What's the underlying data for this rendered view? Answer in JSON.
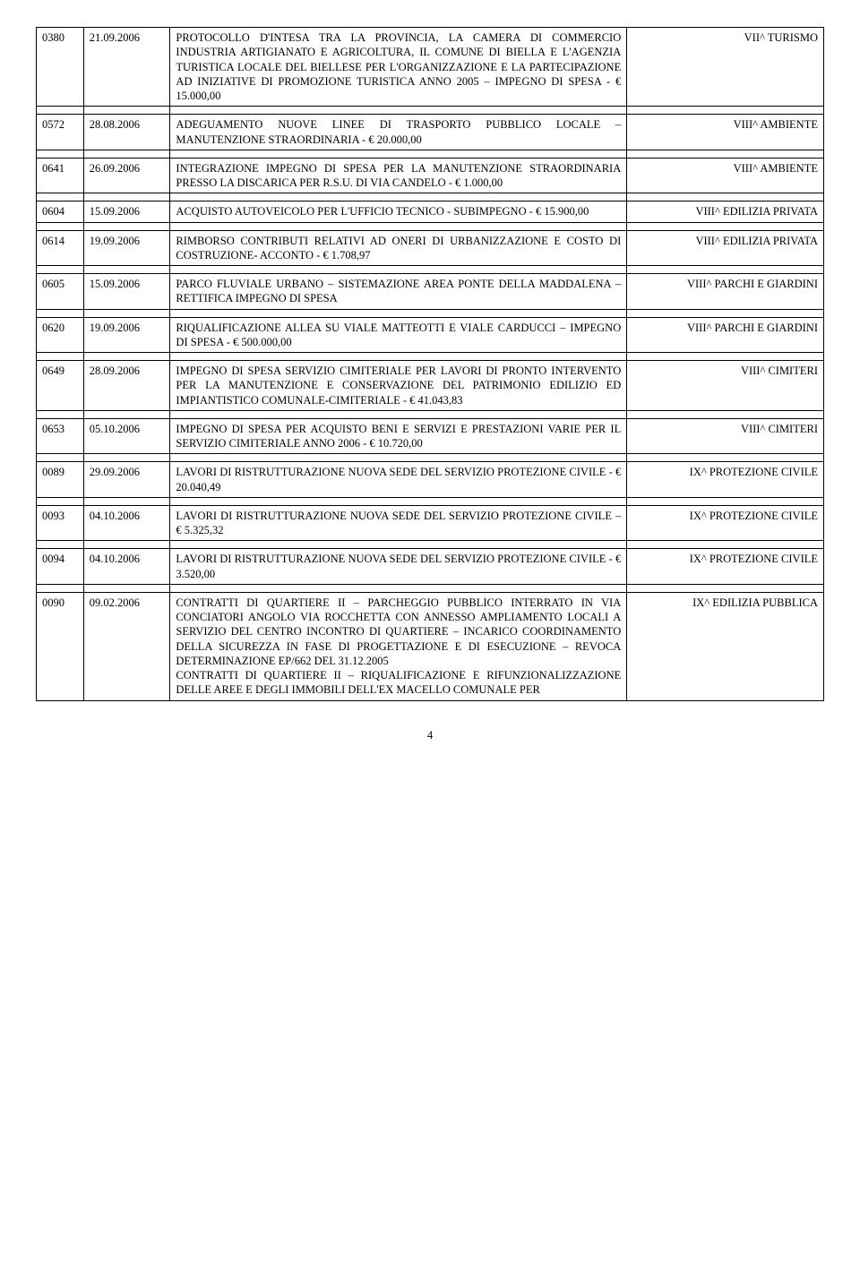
{
  "rows": [
    {
      "num": "0380",
      "date": "21.09.2006",
      "desc": "PROTOCOLLO D'INTESA TRA LA PROVINCIA, LA CAMERA DI COMMERCIO INDUSTRIA ARTIGIANATO E AGRICOLTURA, IL COMUNE DI BIELLA E L'AGENZIA TURISTICA LOCALE DEL BIELLESE PER L'ORGANIZZAZIONE E LA PARTECIPAZIONE AD INIZIATIVE DI PROMOZIONE TURISTICA ANNO 2005 – IMPEGNO DI SPESA - € 15.000,00",
      "cat": "VII^ TURISMO"
    },
    {
      "num": "0572",
      "date": "28.08.2006",
      "desc": "ADEGUAMENTO NUOVE LINEE DI TRASPORTO PUBBLICO LOCALE – MANUTENZIONE STRAORDINARIA - € 20.000,00",
      "cat": "VIII^ AMBIENTE"
    },
    {
      "num": "0641",
      "date": "26.09.2006",
      "desc": "INTEGRAZIONE IMPEGNO DI SPESA PER LA MANUTENZIONE STRAORDINARIA PRESSO LA DISCARICA PER R.S.U. DI VIA CANDELO - € 1.000,00",
      "cat": "VIII^ AMBIENTE"
    },
    {
      "num": "0604",
      "date": "15.09.2006",
      "desc": "ACQUISTO AUTOVEICOLO PER L'UFFICIO TECNICO - SUBIMPEGNO - € 15.900,00",
      "cat": "VIII^ EDILIZIA PRIVATA"
    },
    {
      "num": "0614",
      "date": "19.09.2006",
      "desc": "RIMBORSO CONTRIBUTI RELATIVI AD ONERI DI URBANIZZAZIONE E COSTO DI COSTRUZIONE- ACCONTO - € 1.708,97",
      "cat": "VIII^ EDILIZIA PRIVATA"
    },
    {
      "num": "0605",
      "date": "15.09.2006",
      "desc": "PARCO FLUVIALE URBANO – SISTEMAZIONE AREA PONTE DELLA MADDALENA – RETTIFICA IMPEGNO DI SPESA",
      "cat": "VIII^ PARCHI E GIARDINI"
    },
    {
      "num": "0620",
      "date": "19.09.2006",
      "desc": "RIQUALIFICAZIONE ALLEA SU VIALE MATTEOTTI E VIALE CARDUCCI – IMPEGNO DI SPESA - € 500.000,00",
      "cat": "VIII^ PARCHI E GIARDINI"
    },
    {
      "num": "0649",
      "date": "28.09.2006",
      "desc": "IMPEGNO DI SPESA SERVIZIO CIMITERIALE PER LAVORI DI PRONTO INTERVENTO PER LA MANUTENZIONE E CONSERVAZIONE DEL PATRIMONIO EDILIZIO ED IMPIANTISTICO COMUNALE-CIMITERIALE - € 41.043,83",
      "cat": "VIII^ CIMITERI"
    },
    {
      "num": "0653",
      "date": "05.10.2006",
      "desc": "IMPEGNO DI SPESA PER ACQUISTO BENI E SERVIZI E PRESTAZIONI VARIE PER IL SERVIZIO CIMITERIALE ANNO 2006 - € 10.720,00",
      "cat": "VIII^ CIMITERI"
    },
    {
      "num": "0089",
      "date": "29.09.2006",
      "desc": "LAVORI DI RISTRUTTURAZIONE NUOVA SEDE DEL SERVIZIO PROTEZIONE CIVILE - € 20.040,49",
      "cat": "IX^ PROTEZIONE CIVILE"
    },
    {
      "num": "0093",
      "date": "04.10.2006",
      "desc": "LAVORI DI RISTRUTTURAZIONE NUOVA SEDE DEL SERVIZIO PROTEZIONE CIVILE – € 5.325,32",
      "cat": "IX^ PROTEZIONE CIVILE"
    },
    {
      "num": "0094",
      "date": "04.10.2006",
      "desc": "LAVORI DI RISTRUTTURAZIONE NUOVA SEDE DEL SERVIZIO PROTEZIONE CIVILE - € 3.520,00",
      "cat": "IX^ PROTEZIONE CIVILE"
    },
    {
      "num": "0090",
      "date": "09.02.2006",
      "desc": "CONTRATTI DI QUARTIERE II – PARCHEGGIO PUBBLICO INTERRATO IN VIA CONCIATORI ANGOLO VIA ROCCHETTA CON ANNESSO AMPLIAMENTO LOCALI A SERVIZIO DEL CENTRO INCONTRO DI QUARTIERE – INCARICO COORDINAMENTO DELLA SICUREZZA IN FASE DI PROGETTAZIONE E DI ESECUZIONE – REVOCA DETERMINAZIONE EP/662 DEL 31.12.2005\nCONTRATTI DI QUARTIERE II – RIQUALIFICAZIONE E RIFUNZIONALIZZAZIONE DELLE AREE E DEGLI IMMOBILI DELL'EX MACELLO COMUNALE PER",
      "cat": "IX^ EDILIZIA PUBBLICA"
    }
  ],
  "page_number": "4"
}
